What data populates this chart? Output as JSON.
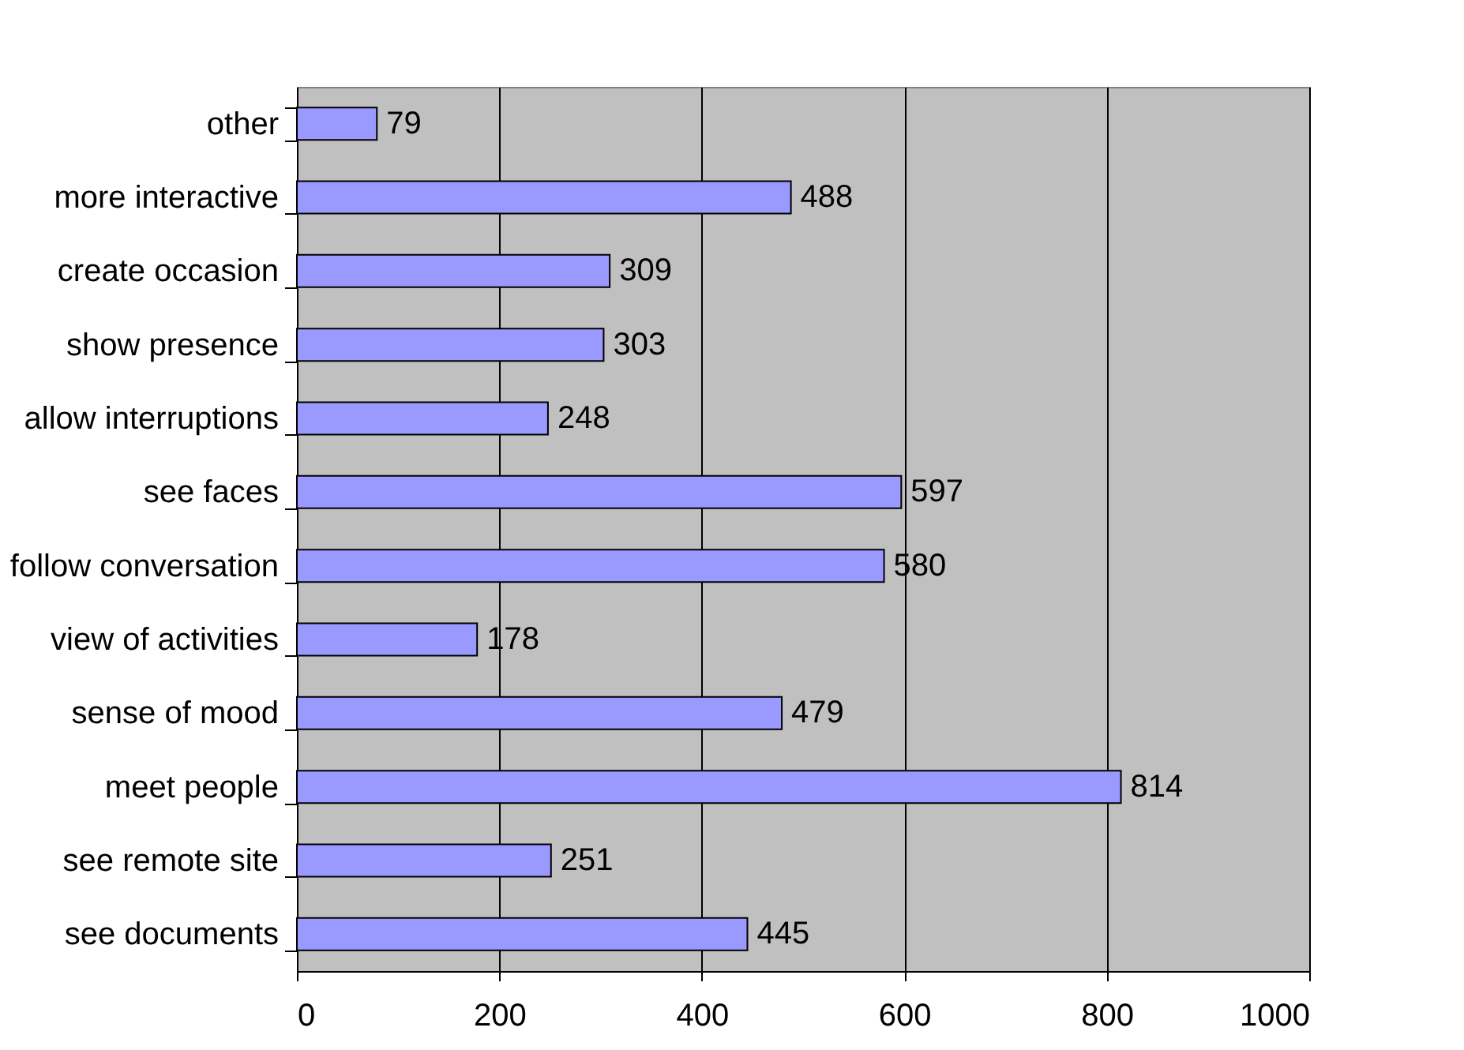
{
  "chart_data": {
    "type": "bar",
    "orientation": "horizontal",
    "categories": [
      "other",
      "more interactive",
      "create occasion",
      "show presence",
      "allow interruptions",
      "see faces",
      "follow conversation",
      "view of activities",
      "sense of mood",
      "meet people",
      "see remote site",
      "see documents"
    ],
    "values": [
      79,
      488,
      309,
      303,
      248,
      597,
      580,
      178,
      479,
      814,
      251,
      445
    ],
    "color": "#9999ff",
    "xlim": [
      0,
      1000
    ],
    "xticks": [
      0,
      200,
      400,
      600,
      800,
      1000
    ],
    "grid": "x",
    "data_labels": true
  }
}
